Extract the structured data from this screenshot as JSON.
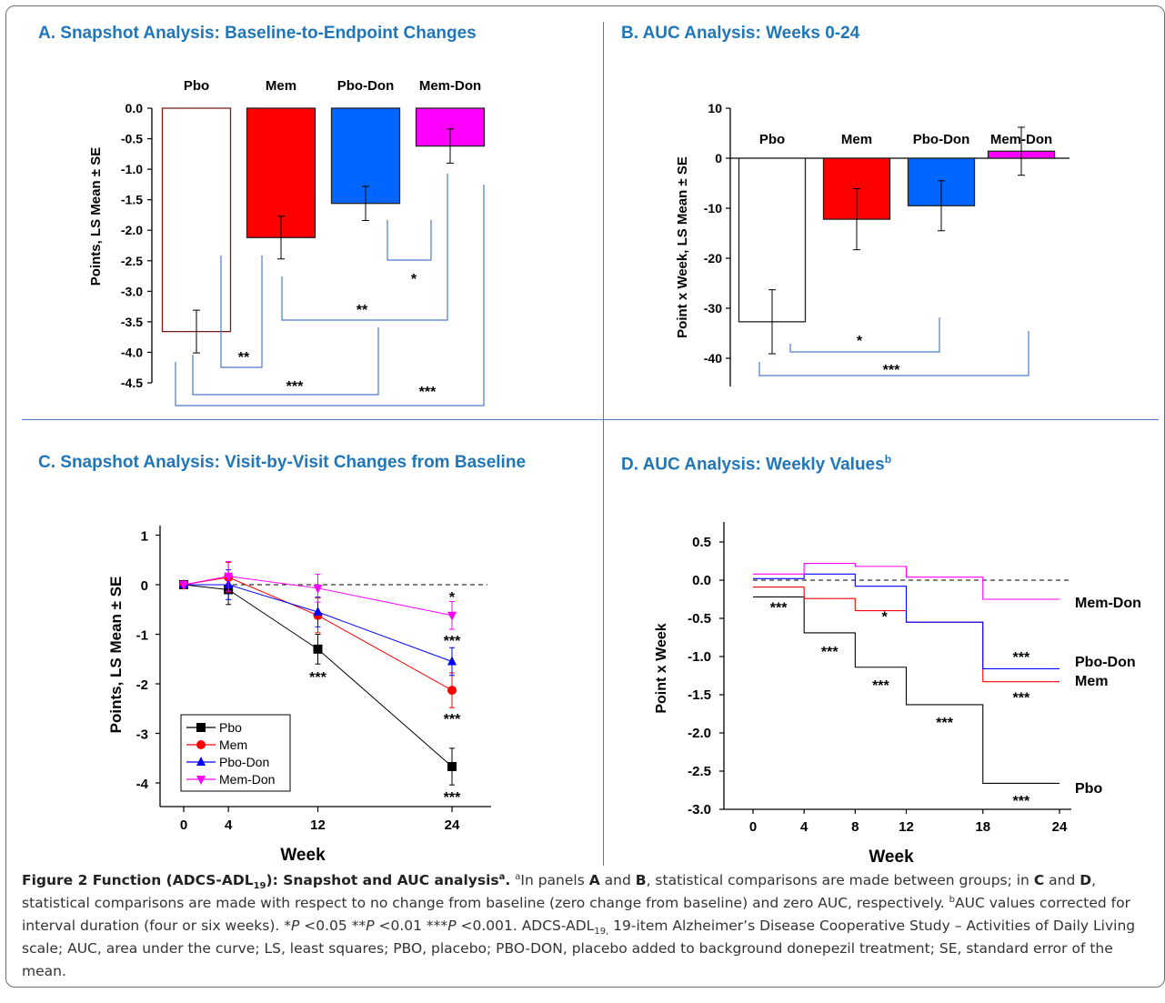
{
  "panels": [
    {
      "id": "A",
      "title": "A. Snapshot Analysis: Baseline-to-Endpoint Changes",
      "chart_data": {
        "type": "bar",
        "ylabel": "Points, LS Mean ± SE",
        "xlabel": "",
        "ylim": [
          -4.5,
          0.0
        ],
        "yticks": [
          "0.0",
          "-0.5",
          "-1.0",
          "-1.5",
          "-2.0",
          "-2.5",
          "-3.0",
          "-3.5",
          "-4.0",
          "-4.5"
        ],
        "ytick_values": [
          0,
          -0.5,
          -1,
          -1.5,
          -2,
          -2.5,
          -3,
          -3.5,
          -4,
          -4.5
        ],
        "categories": [
          "Pbo",
          "Mem",
          "Pbo-Don",
          "Mem-Don"
        ],
        "values": [
          -3.66,
          -2.12,
          -1.56,
          -0.62
        ],
        "errors": [
          0.35,
          0.35,
          0.28,
          0.28
        ],
        "colors": [
          "#ffffff",
          "#ff0000",
          "#0066ff",
          "#ff00ff"
        ],
        "edge_colors": [
          "#7a1a1a",
          "#222222",
          "#222222",
          "#222222"
        ],
        "significance": [
          {
            "pair": [
              "Pbo",
              "Mem"
            ],
            "label": "**"
          },
          {
            "pair": [
              "Pbo",
              "Pbo-Don"
            ],
            "label": "***"
          },
          {
            "pair": [
              "Pbo",
              "Mem-Don"
            ],
            "label": "***"
          },
          {
            "pair": [
              "Mem",
              "Mem-Don"
            ],
            "label": "**"
          },
          {
            "pair": [
              "Pbo-Don",
              "Mem-Don"
            ],
            "label": "*"
          }
        ]
      }
    },
    {
      "id": "B",
      "title": "B. AUC Analysis: Weeks 0-24",
      "chart_data": {
        "type": "bar",
        "ylabel": "Point x Week, LS Mean ± SE",
        "xlabel": "",
        "ylim": [
          -40,
          10
        ],
        "yticks": [
          "10",
          "0",
          "-10",
          "-20",
          "-30",
          "-40"
        ],
        "ytick_values": [
          10,
          0,
          -10,
          -20,
          -30,
          -40
        ],
        "categories": [
          "Pbo",
          "Mem",
          "Pbo-Don",
          "Mem-Don"
        ],
        "values": [
          -32.7,
          -12.2,
          -9.5,
          1.4
        ],
        "errors": [
          6.4,
          6.1,
          5.0,
          4.8
        ],
        "colors": [
          "#ffffff",
          "#ff0000",
          "#0066ff",
          "#ff00ff"
        ],
        "edge_colors": [
          "#222222",
          "#222222",
          "#222222",
          "#222222"
        ],
        "significance": [
          {
            "pair": [
              "Pbo",
              "Pbo-Don"
            ],
            "label": "*"
          },
          {
            "pair": [
              "Pbo",
              "Mem-Don"
            ],
            "label": "***"
          }
        ]
      }
    },
    {
      "id": "C",
      "title": "C. Snapshot Analysis: Visit-by-Visit Changes from Baseline",
      "chart_data": {
        "type": "line",
        "xlabel": "Week",
        "ylabel": "Points, LS Mean ± SE",
        "x": [
          0,
          4,
          12,
          24
        ],
        "xticks": [
          "0",
          "4",
          "12",
          "24"
        ],
        "ylim": [
          -4.5,
          1
        ],
        "yticks": [
          "1",
          "0",
          "-1",
          "-2",
          "-3",
          "-4"
        ],
        "ytick_values": [
          1,
          0,
          -1,
          -2,
          -3,
          -4
        ],
        "reference_line": 0,
        "series": [
          {
            "name": "Pbo",
            "color": "#000000",
            "marker": "square",
            "values": [
              0,
              -0.1,
              -1.3,
              -3.67
            ],
            "errors": [
              0,
              0.3,
              0.3,
              0.37
            ],
            "annotations": [
              "",
              "",
              "***",
              "***"
            ]
          },
          {
            "name": "Mem",
            "color": "#ff0000",
            "marker": "circle",
            "values": [
              0,
              0.15,
              -0.62,
              -2.13
            ],
            "errors": [
              0,
              0.3,
              0.35,
              0.35
            ],
            "annotations": [
              "",
              "",
              "",
              "***"
            ]
          },
          {
            "name": "Pbo-Don",
            "color": "#0000ff",
            "marker": "triangle-up",
            "values": [
              0,
              0.0,
              -0.55,
              -1.55
            ],
            "errors": [
              0,
              0.3,
              0.3,
              0.28
            ],
            "annotations": [
              "",
              "",
              "",
              "***"
            ]
          },
          {
            "name": "Mem-Don",
            "color": "#ff00ff",
            "marker": "triangle-down",
            "values": [
              0,
              0.17,
              -0.07,
              -0.62
            ],
            "errors": [
              0,
              0.3,
              0.28,
              0.28
            ],
            "annotations": [
              "",
              "",
              "",
              "*"
            ]
          }
        ],
        "legend": "bottom-left"
      }
    },
    {
      "id": "D",
      "title": "D. AUC Analysis: Weekly Values",
      "title_sup": "b",
      "chart_data": {
        "type": "line",
        "xlabel": "Week",
        "ylabel": "Point x Week",
        "xticks": [
          "0",
          "4",
          "8",
          "12",
          "18",
          "24"
        ],
        "xtick_values": [
          0,
          4,
          8,
          12,
          18,
          24
        ],
        "ylim": [
          -3.0,
          0.75
        ],
        "yticks": [
          "0.5",
          "0.0",
          "-0.5",
          "-1.0",
          "-1.5",
          "-2.0",
          "-2.5",
          "-3.0"
        ],
        "ytick_values": [
          0.5,
          0,
          -0.5,
          -1,
          -1.5,
          -2,
          -2.5,
          -3
        ],
        "reference_line": 0,
        "step_edges": [
          0,
          4,
          8,
          12,
          18,
          24
        ],
        "series": [
          {
            "name": "Pbo",
            "color": "#000000",
            "values": [
              -0.22,
              -0.69,
              -1.14,
              -1.63,
              -2.66
            ]
          },
          {
            "name": "Mem",
            "color": "#ff0000",
            "values": [
              -0.09,
              -0.24,
              -0.4,
              -0.55,
              -1.33
            ]
          },
          {
            "name": "Pbo-Don",
            "color": "#0000ff",
            "values": [
              0.02,
              0.08,
              -0.08,
              -0.55,
              -1.16
            ]
          },
          {
            "name": "Mem-Don",
            "color": "#ff00ff",
            "values": [
              0.08,
              0.22,
              0.18,
              0.04,
              -0.25
            ]
          }
        ],
        "annotations": [
          {
            "x": 2,
            "y": -0.35,
            "label": "***"
          },
          {
            "x": 6,
            "y": -0.93,
            "label": "***"
          },
          {
            "x": 10,
            "y": -1.37,
            "label": "***"
          },
          {
            "x": 15,
            "y": -1.86,
            "label": "***"
          },
          {
            "x": 10.3,
            "y": -0.47,
            "label": "*"
          },
          {
            "x": 21,
            "y": -1.0,
            "label": "***"
          },
          {
            "x": 21,
            "y": -1.53,
            "label": "***"
          },
          {
            "x": 21,
            "y": -2.88,
            "label": "***"
          }
        ],
        "end_labels": [
          "Mem-Don",
          "Pbo-Don",
          "Mem",
          "Pbo"
        ]
      }
    }
  ],
  "caption": {
    "head": "Figure 2 Function (ADCS-ADL",
    "head_sub": "19",
    "head_tail": "): Snapshot and AUC analysis",
    "head_sup": "a",
    "head_end": ".",
    "s1_sup": "a",
    "s1_a": "In panels ",
    "s1_A": "A",
    "s1_and": " and ",
    "s1_B": "B",
    "s1_b": ", statistical comparisons are made between groups; in ",
    "s1_C": "C",
    "s1_c": " and ",
    "s1_D": "D",
    "s1_d": ", statistical comparisons are made with respect to no change from baseline (zero change from baseline) and zero AUC, respectively. ",
    "s2_sup": "b",
    "s2": "AUC values corrected for interval duration (four or six weeks). *",
    "p1": "P",
    "p1_t": " <0.05 **",
    "p2": "P",
    "p2_t": " <0.01 ***",
    "p3": "P",
    "p3_t": " <0.001. ADCS-ADL",
    "adl_sub": "19,",
    "rest": " 19-item Alzheimer’s Disease Cooperative Study – Activities of Daily Living scale; AUC, area under the curve; LS, least squares; PBO, placebo; PBO-DON, placebo added to background donepezil treatment; SE, standard error of the mean."
  }
}
